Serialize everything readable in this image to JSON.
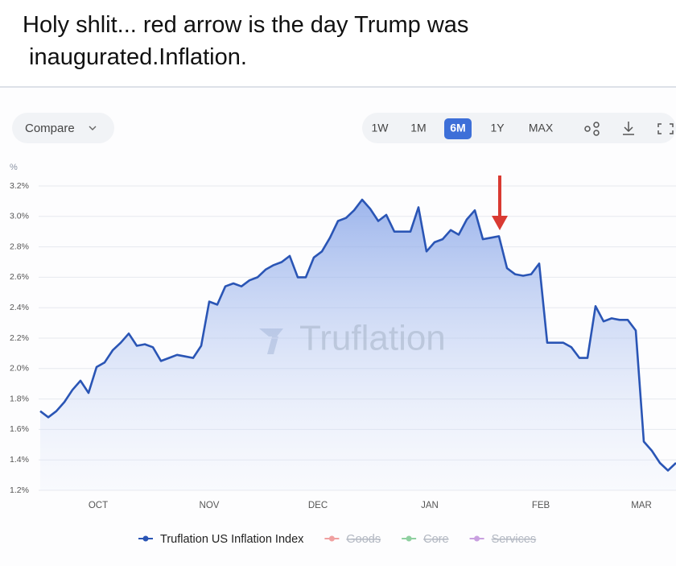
{
  "post_text": "Holy shlit... red arrow is the day Trump was inaugurated.Inflation.",
  "toolbar": {
    "compare": "Compare",
    "ranges": [
      "1W",
      "1M",
      "6M",
      "1Y",
      "MAX"
    ],
    "active_range": 2
  },
  "chart_data": {
    "type": "line",
    "y_unit": "%",
    "watermark": "Truflation",
    "xlim": [
      0,
      79
    ],
    "xticks": [
      {
        "value": 7.2,
        "label": "OCT"
      },
      {
        "value": 21,
        "label": "NOV"
      },
      {
        "value": 34.5,
        "label": "DEC"
      },
      {
        "value": 48.4,
        "label": "JAN"
      },
      {
        "value": 62.2,
        "label": "FEB"
      },
      {
        "value": 74.7,
        "label": "MAR"
      }
    ],
    "ylim": [
      1.2,
      3.2
    ],
    "yticks": [
      {
        "value": 1.2,
        "label": "1.2%"
      },
      {
        "value": 1.4,
        "label": "1.4%"
      },
      {
        "value": 1.6,
        "label": "1.6%"
      },
      {
        "value": 1.8,
        "label": "1.8%"
      },
      {
        "value": 2.0,
        "label": "2.0%"
      },
      {
        "value": 2.2,
        "label": "2.2%"
      },
      {
        "value": 2.4,
        "label": "2.4%"
      },
      {
        "value": 2.6,
        "label": "2.6%"
      },
      {
        "value": 2.8,
        "label": "2.8%"
      },
      {
        "value": 3.0,
        "label": "3.0%"
      },
      {
        "value": 3.2,
        "label": "3.2%"
      }
    ],
    "grid": true,
    "series": [
      {
        "name": "Truflation US Inflation Index",
        "color": "#2a55b5",
        "values": [
          1.72,
          1.68,
          1.72,
          1.78,
          1.86,
          1.92,
          1.84,
          2.01,
          2.04,
          2.12,
          2.17,
          2.23,
          2.15,
          2.16,
          2.14,
          2.05,
          2.07,
          2.09,
          2.08,
          2.07,
          2.15,
          2.44,
          2.42,
          2.54,
          2.56,
          2.54,
          2.58,
          2.6,
          2.65,
          2.68,
          2.7,
          2.74,
          2.6,
          2.6,
          2.73,
          2.77,
          2.86,
          2.97,
          2.99,
          3.04,
          3.11,
          3.05,
          2.97,
          3.01,
          2.9,
          2.9,
          2.9,
          3.06,
          2.77,
          2.83,
          2.85,
          2.91,
          2.88,
          2.98,
          3.04,
          2.85,
          2.86,
          2.87,
          2.66,
          2.62,
          2.61,
          2.62,
          2.69,
          2.17,
          2.17,
          2.17,
          2.14,
          2.07,
          2.07,
          2.41,
          2.31,
          2.33,
          2.32,
          2.32,
          2.25,
          1.52,
          1.46,
          1.38,
          1.33,
          1.38
        ]
      }
    ],
    "hidden_series": [
      {
        "name": "Goods",
        "color": "#f0a0a0"
      },
      {
        "name": "Core",
        "color": "#8fd0a0"
      },
      {
        "name": "Services",
        "color": "#c9a0e0"
      }
    ]
  }
}
